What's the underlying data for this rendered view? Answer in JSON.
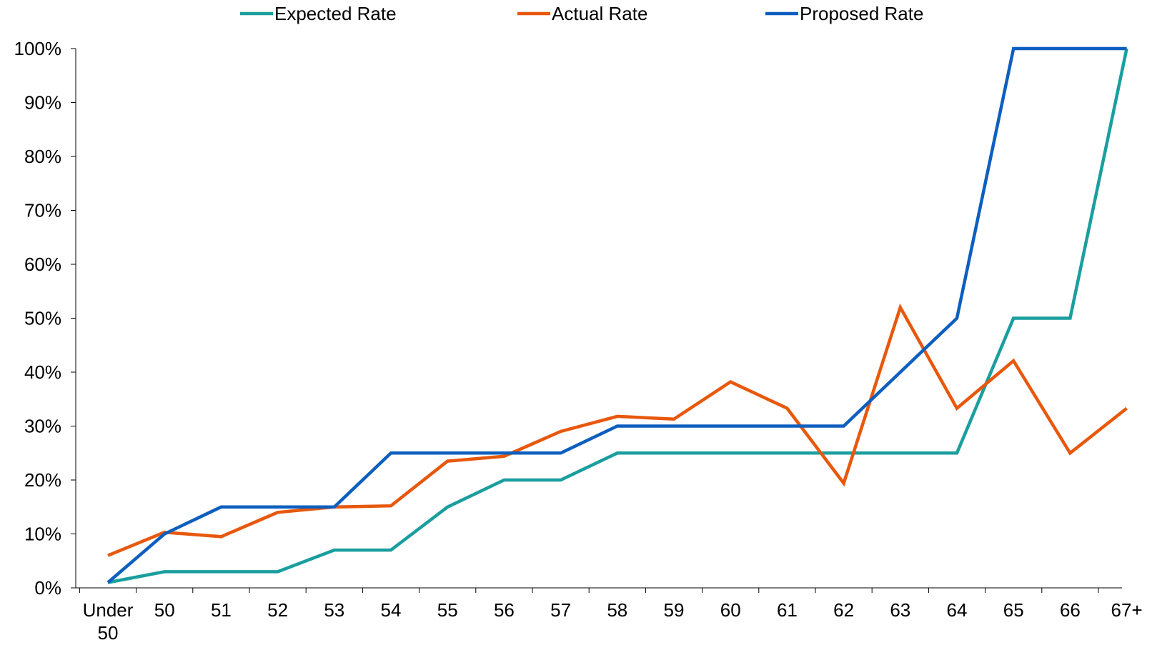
{
  "chart_data": {
    "type": "line",
    "title": "",
    "xlabel": "",
    "ylabel": "",
    "categories": [
      "Under 50",
      "50",
      "51",
      "52",
      "53",
      "54",
      "55",
      "56",
      "57",
      "58",
      "59",
      "60",
      "61",
      "62",
      "63",
      "64",
      "65",
      "66",
      "67+"
    ],
    "ylim": [
      0,
      100
    ],
    "yticks": [
      "0%",
      "10%",
      "20%",
      "30%",
      "40%",
      "50%",
      "60%",
      "70%",
      "80%",
      "90%",
      "100%"
    ],
    "grid": false,
    "legend_position": "top",
    "series": [
      {
        "name": "Expected Rate",
        "color": "#1a9e9e",
        "values": [
          1,
          3,
          3,
          3,
          7,
          7,
          15,
          20,
          20,
          25,
          25,
          25,
          25,
          25,
          25,
          25,
          50,
          50,
          100
        ]
      },
      {
        "name": "Actual Rate",
        "color": "#e8580c",
        "values": [
          6,
          10.3,
          9.5,
          14,
          15,
          15.2,
          23.5,
          24.4,
          29,
          31.8,
          31.3,
          38.2,
          33.3,
          19.4,
          52,
          33.3,
          42.1,
          25,
          33.3
        ]
      },
      {
        "name": "Proposed Rate",
        "color": "#0d5fbf",
        "values": [
          1,
          10,
          15,
          15,
          15,
          25,
          25,
          25,
          25,
          30,
          30,
          30,
          30,
          30,
          40,
          50,
          100,
          100,
          100
        ]
      }
    ]
  }
}
